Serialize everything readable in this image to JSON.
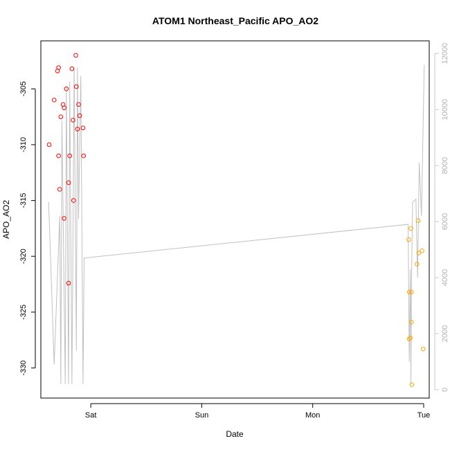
{
  "chart_data": {
    "type": "scatter",
    "title": "ATOM1 Northeast_Pacific APO_AO2",
    "xlabel": "Date",
    "ylabel": "APO_AO2",
    "x_axis": {
      "unit": "days",
      "range": [
        -0.45,
        3.05
      ],
      "ticks": [
        {
          "value": 0,
          "label": "Sat"
        },
        {
          "value": 1,
          "label": "Sun"
        },
        {
          "value": 2,
          "label": "Mon"
        },
        {
          "value": 3,
          "label": "Tue"
        }
      ]
    },
    "y_axis": {
      "range": [
        -332.7,
        -300.7
      ],
      "ticks": [
        -330,
        -325,
        -320,
        -315,
        -310,
        -305
      ]
    },
    "y2_axis": {
      "range": [
        -300,
        12450
      ],
      "ticks": [
        0,
        2000,
        4000,
        6000,
        8000,
        10000,
        12000
      ],
      "color": "#c8c8c8"
    },
    "series": [
      {
        "color": "#ff0000",
        "points": [
          {
            "x": -0.375,
            "y": -310.0
          },
          {
            "x": -0.33,
            "y": -306.0
          },
          {
            "x": -0.3,
            "y": -303.4
          },
          {
            "x": -0.29,
            "y": -303.1
          },
          {
            "x": -0.29,
            "y": -311.0
          },
          {
            "x": -0.28,
            "y": -314.0
          },
          {
            "x": -0.27,
            "y": -307.5
          },
          {
            "x": -0.25,
            "y": -306.4
          },
          {
            "x": -0.24,
            "y": -306.7
          },
          {
            "x": -0.24,
            "y": -316.6
          },
          {
            "x": -0.22,
            "y": -305.0
          },
          {
            "x": -0.2,
            "y": -313.4
          },
          {
            "x": -0.2,
            "y": -322.4
          },
          {
            "x": -0.19,
            "y": -311.0
          },
          {
            "x": -0.17,
            "y": -303.2
          },
          {
            "x": -0.16,
            "y": -307.8
          },
          {
            "x": -0.155,
            "y": -315.0
          },
          {
            "x": -0.135,
            "y": -302.0
          },
          {
            "x": -0.13,
            "y": -304.8
          },
          {
            "x": -0.12,
            "y": -308.6
          },
          {
            "x": -0.11,
            "y": -306.4
          },
          {
            "x": -0.1,
            "y": -307.4
          },
          {
            "x": -0.07,
            "y": -308.5
          },
          {
            "x": -0.065,
            "y": -311.0
          }
        ]
      },
      {
        "color": "#ffa500",
        "points": [
          {
            "x": 2.865,
            "y": -318.5
          },
          {
            "x": 2.87,
            "y": -323.2
          },
          {
            "x": 2.87,
            "y": -327.4
          },
          {
            "x": 2.88,
            "y": -327.3
          },
          {
            "x": 2.885,
            "y": -317.5
          },
          {
            "x": 2.89,
            "y": -323.2
          },
          {
            "x": 2.89,
            "y": -325.9
          },
          {
            "x": 2.893,
            "y": -331.5
          },
          {
            "x": 2.94,
            "y": -320.7
          },
          {
            "x": 2.95,
            "y": -316.8
          },
          {
            "x": 2.955,
            "y": -319.7
          },
          {
            "x": 2.985,
            "y": -319.5
          },
          {
            "x": 2.995,
            "y": -328.3
          }
        ]
      }
    ],
    "secondary_line": {
      "color": "#c0c0c0",
      "points": [
        {
          "x": -0.38,
          "y": 6700
        },
        {
          "x": -0.33,
          "y": 900
        },
        {
          "x": -0.28,
          "y": 6200
        },
        {
          "x": -0.27,
          "y": 200
        },
        {
          "x": -0.26,
          "y": 9600
        },
        {
          "x": -0.23,
          "y": 200
        },
        {
          "x": -0.22,
          "y": 10800
        },
        {
          "x": -0.2,
          "y": 200
        },
        {
          "x": -0.19,
          "y": 11000
        },
        {
          "x": -0.17,
          "y": 200
        },
        {
          "x": -0.15,
          "y": 11500
        },
        {
          "x": -0.13,
          "y": 1400
        },
        {
          "x": -0.12,
          "y": 11500
        },
        {
          "x": -0.11,
          "y": 6100
        },
        {
          "x": -0.09,
          "y": 11200
        },
        {
          "x": -0.07,
          "y": 200
        },
        {
          "x": -0.06,
          "y": 4700
        },
        {
          "x": 2.86,
          "y": 5900
        },
        {
          "x": 2.87,
          "y": 1000
        },
        {
          "x": 2.88,
          "y": 4300
        },
        {
          "x": 2.885,
          "y": 200
        },
        {
          "x": 2.89,
          "y": 3800
        },
        {
          "x": 2.9,
          "y": 6700
        },
        {
          "x": 2.93,
          "y": 6800
        },
        {
          "x": 2.945,
          "y": 4000
        },
        {
          "x": 2.96,
          "y": 8100
        },
        {
          "x": 2.98,
          "y": 6200
        },
        {
          "x": 3.005,
          "y": 11600
        }
      ]
    }
  }
}
